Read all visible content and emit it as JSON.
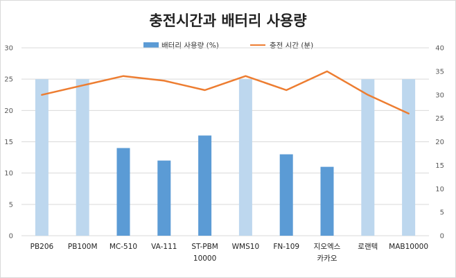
{
  "chart_data": {
    "type": "bar",
    "title": "충전시간과 배터리 사용량",
    "categories": [
      [
        "PB206"
      ],
      [
        "PB100M"
      ],
      [
        "MC-510"
      ],
      [
        "VA-111"
      ],
      [
        "ST-PBM",
        "10000"
      ],
      [
        "WMS10"
      ],
      [
        "FN-109"
      ],
      [
        "지오엑스",
        "카카오"
      ],
      [
        "로랜텍"
      ],
      [
        "MAB10000"
      ]
    ],
    "series": [
      {
        "name": "배터리 사용량 (%)",
        "kind": "bar",
        "axis": "left",
        "values": [
          25,
          25,
          14,
          12,
          16,
          25,
          13,
          11,
          25,
          25
        ],
        "highlight": [
          true,
          true,
          false,
          false,
          false,
          true,
          false,
          false,
          true,
          true
        ],
        "color": "#5b9bd5",
        "light_color": "#bdd7ee"
      },
      {
        "name": "충전 시간 (분)",
        "kind": "line",
        "axis": "right",
        "values": [
          30,
          32,
          34,
          33,
          31,
          34,
          31,
          35,
          30,
          26
        ],
        "color": "#ed7d31"
      }
    ],
    "y_left": {
      "min": 0,
      "max": 30,
      "step": 5,
      "ticks": [
        "0",
        "5",
        "10",
        "15",
        "20",
        "25",
        "30"
      ]
    },
    "y_right": {
      "min": 0,
      "max": 40,
      "step": 5,
      "ticks": [
        "0",
        "5",
        "10",
        "15",
        "20",
        "25",
        "30",
        "35",
        "40"
      ]
    },
    "grid": true,
    "legend_position": "top"
  }
}
